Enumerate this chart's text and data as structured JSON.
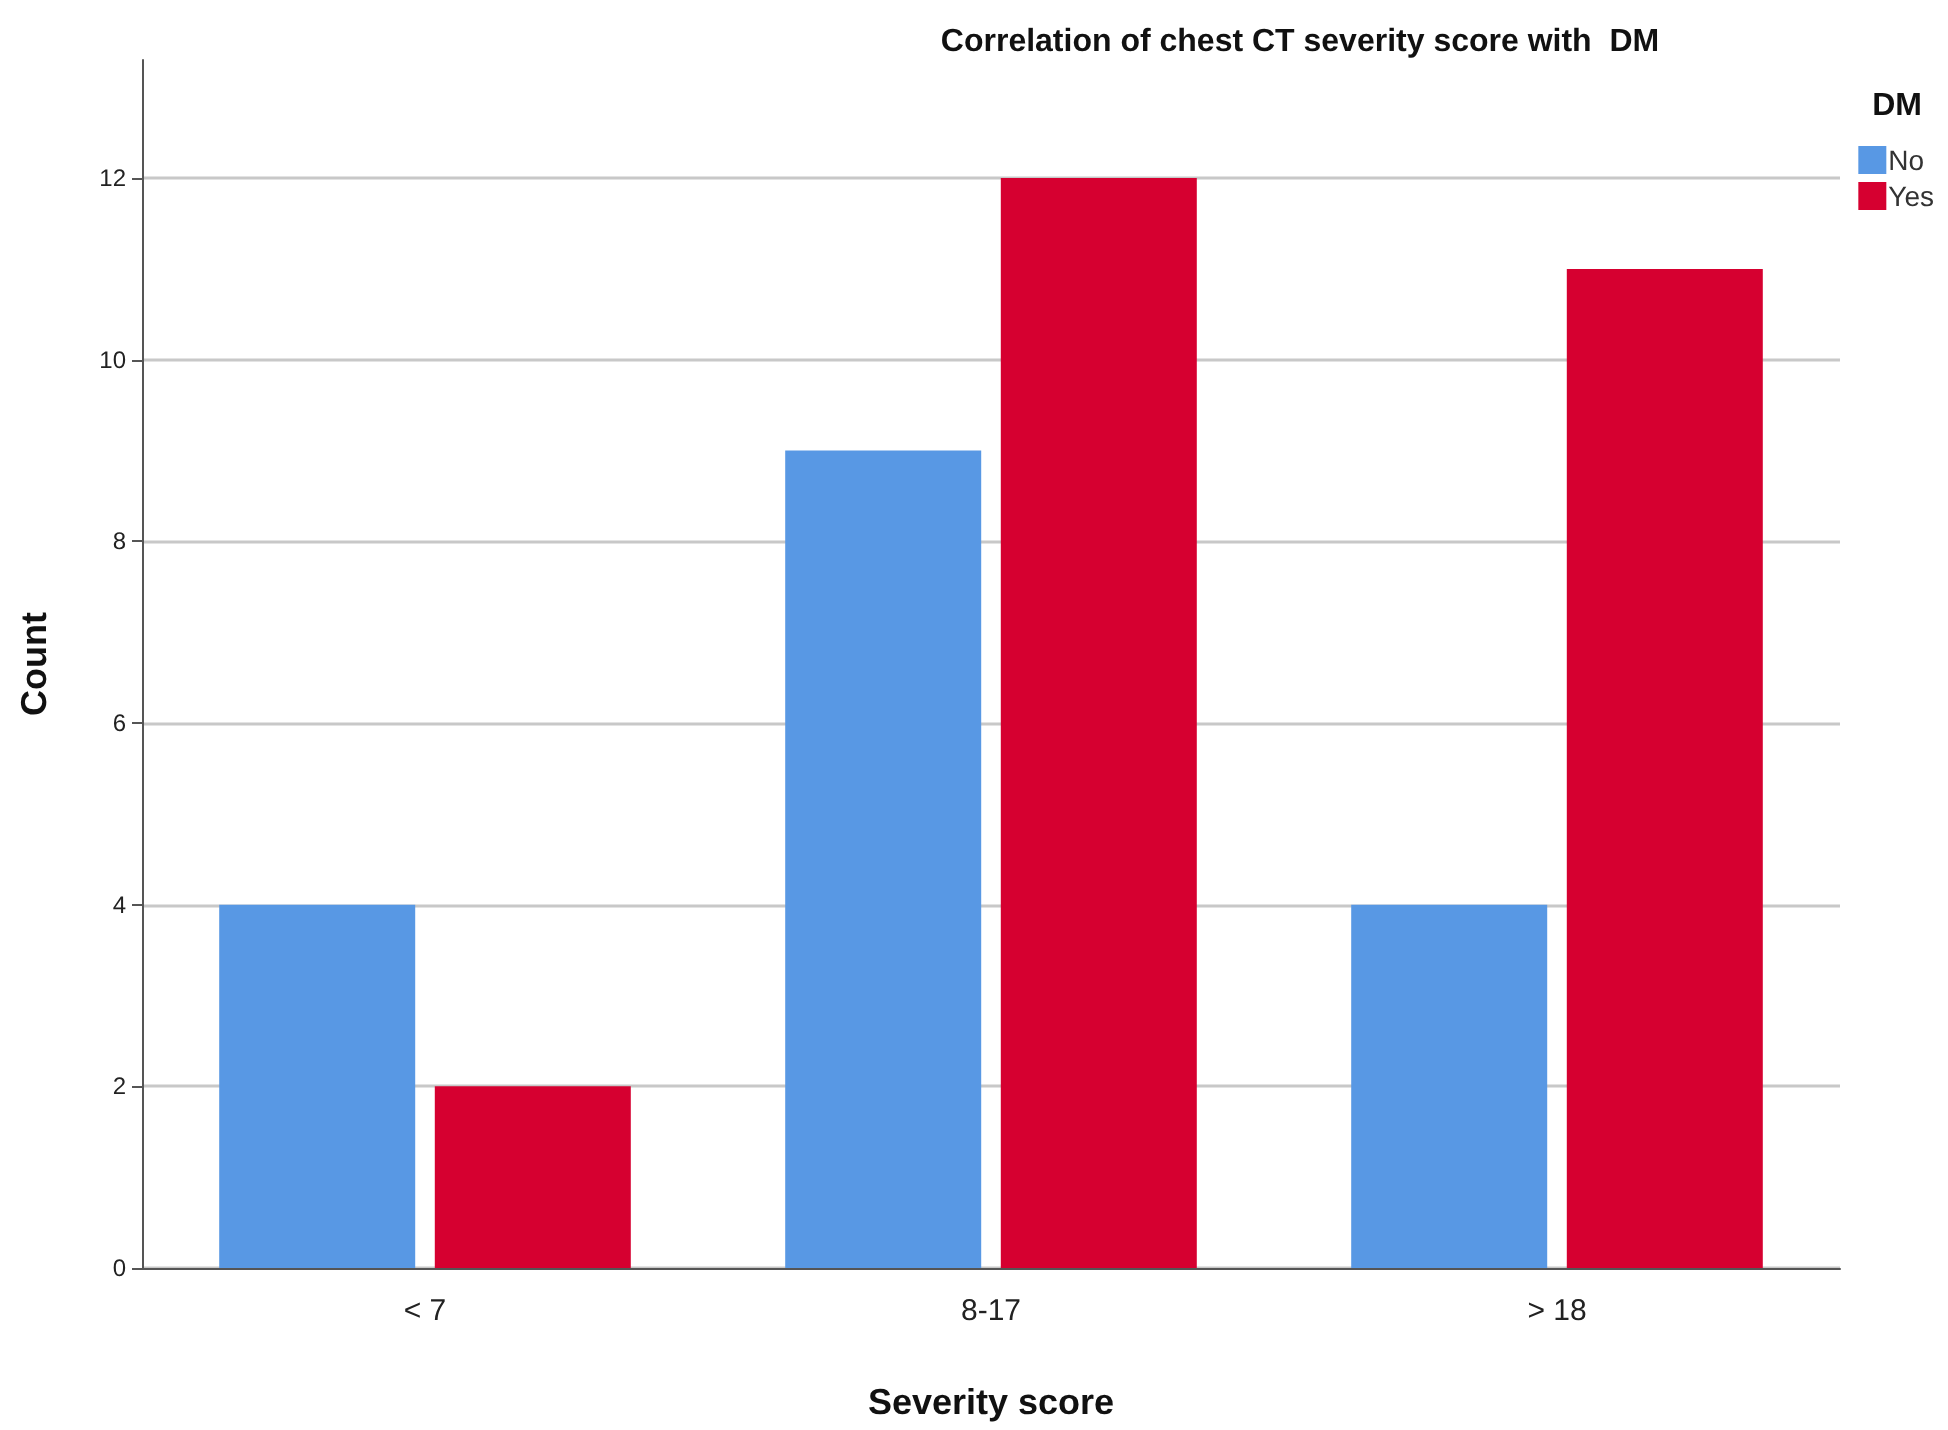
{
  "chart_data": {
    "type": "bar",
    "title": "Correlation of chest CT severity score with  DM",
    "xlabel": "Severity score",
    "ylabel": "Count",
    "legend_title": "DM",
    "categories": [
      "< 7",
      "8-17",
      "> 18"
    ],
    "series": [
      {
        "name": "No",
        "color": "#5898e4",
        "values": [
          4,
          9,
          4
        ]
      },
      {
        "name": "Yes",
        "color": "#d60030",
        "values": [
          2,
          12,
          11
        ]
      }
    ],
    "ylim": [
      0,
      13.3
    ],
    "yticks": [
      0,
      2,
      4,
      6,
      8,
      10,
      12
    ],
    "grid": "y",
    "legend": "top right"
  }
}
